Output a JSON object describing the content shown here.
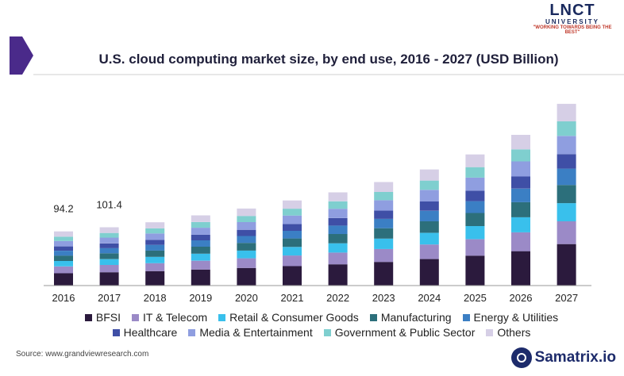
{
  "chart_data": {
    "type": "bar",
    "stacked": true,
    "title": "U.S. cloud computing market size, by end use, 2016 - 2027 (USD Billion)",
    "xlabel": "",
    "ylabel": "",
    "categories": [
      "2016",
      "2017",
      "2018",
      "2019",
      "2020",
      "2021",
      "2022",
      "2023",
      "2024",
      "2025",
      "2026",
      "2027"
    ],
    "totals": [
      94.2,
      101.4,
      110,
      122,
      134,
      148,
      162,
      180,
      202,
      228,
      262,
      316
    ],
    "data_labels": [
      "94.2",
      "101.4",
      "",
      "",
      "",
      "",
      "",
      "",
      "",
      "",
      "",
      ""
    ],
    "ylim": [
      0,
      320
    ],
    "grid": false,
    "legend_position": "bottom",
    "series": [
      {
        "name": "BFSI",
        "color": "#2b1a3d",
        "values": [
          21.5,
          23.2,
          25.1,
          27.9,
          30.6,
          33.8,
          37.0,
          41.1,
          46.1,
          52.0,
          59.8,
          72.1
        ]
      },
      {
        "name": "IT & Telecom",
        "color": "#9b8ac7",
        "values": [
          11.8,
          12.7,
          13.8,
          15.3,
          16.8,
          18.5,
          20.3,
          22.6,
          25.3,
          28.6,
          32.8,
          39.6
        ]
      },
      {
        "name": "Retail & Consumer Goods",
        "color": "#39c0ec",
        "values": [
          9.4,
          10.1,
          11.0,
          12.2,
          13.4,
          14.8,
          16.2,
          18.0,
          20.2,
          22.8,
          26.2,
          31.6
        ]
      },
      {
        "name": "Manufacturing",
        "color": "#2c6f7b",
        "values": [
          9.4,
          10.1,
          11.0,
          12.2,
          13.4,
          14.8,
          16.2,
          18.0,
          20.2,
          22.8,
          26.2,
          31.6
        ]
      },
      {
        "name": "Energy & Utilities",
        "color": "#3b7fc4",
        "values": [
          8.5,
          9.1,
          9.9,
          11.0,
          12.1,
          13.3,
          14.6,
          16.2,
          18.2,
          20.5,
          23.6,
          28.4
        ]
      },
      {
        "name": "Healthcare",
        "color": "#3f4fa6",
        "values": [
          7.5,
          8.1,
          8.8,
          9.8,
          10.7,
          11.8,
          13.0,
          14.4,
          16.2,
          18.2,
          21.0,
          25.3
        ]
      },
      {
        "name": "Media & Entertainment",
        "color": "#8f9ee0",
        "values": [
          9.4,
          10.1,
          11.0,
          12.2,
          13.4,
          14.8,
          16.2,
          18.0,
          20.2,
          22.8,
          26.2,
          31.6
        ]
      },
      {
        "name": "Government & Public Sector",
        "color": "#7fcfcf",
        "values": [
          7.5,
          8.1,
          8.8,
          9.8,
          10.7,
          11.8,
          13.0,
          14.4,
          16.2,
          18.2,
          21.0,
          25.3
        ]
      },
      {
        "name": "Others",
        "color": "#d6cfe6",
        "values": [
          9.2,
          9.9,
          10.6,
          11.6,
          12.9,
          14.4,
          15.5,
          17.3,
          19.4,
          22.1,
          25.2,
          30.5
        ]
      }
    ]
  },
  "source_text": "Source: www.grandviewresearch.com",
  "logos": {
    "lnct_name": "LNCT",
    "lnct_sub": "UNIVERSITY",
    "lnct_tagline": "\"WORKING TOWARDS BEING THE BEST\"",
    "samatrix": "Samatrix.io"
  }
}
